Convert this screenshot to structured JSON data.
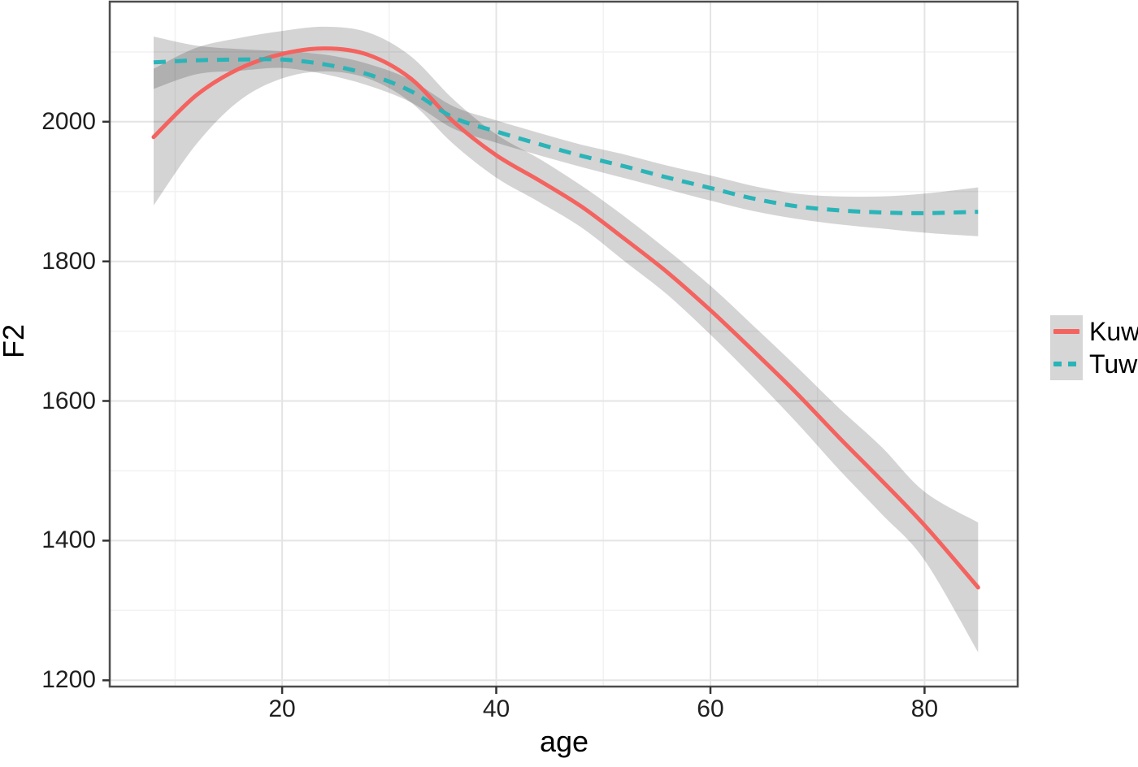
{
  "figure": {
    "background": "#ffffff"
  },
  "chart_data": {
    "type": "line",
    "title": "",
    "xlabel": "age",
    "ylabel": "F2",
    "xlim": [
      3.9,
      88.7
    ],
    "ylim": [
      1191,
      2172
    ],
    "x_ticks": [
      20,
      40,
      60,
      80
    ],
    "x_minor_ticks": [
      10,
      30,
      50,
      70
    ],
    "y_ticks": [
      1200,
      1400,
      1600,
      1800,
      2000
    ],
    "y_minor_ticks": [
      1300,
      1500,
      1700,
      1900,
      2100
    ],
    "grid": true,
    "legend_position": "right",
    "x": [
      8,
      12,
      16,
      20,
      24,
      28,
      32,
      36,
      40,
      44,
      48,
      52,
      56,
      60,
      64,
      68,
      72,
      76,
      80,
      85
    ],
    "series": [
      {
        "name": "Kuw",
        "color": "#f4635f",
        "linestyle": "solid",
        "values": [
          1978,
          2038,
          2076,
          2097,
          2105,
          2096,
          2062,
          2000,
          1952,
          1916,
          1878,
          1832,
          1784,
          1730,
          1672,
          1612,
          1548,
          1486,
          1422,
          1333
        ],
        "ci_lower": [
          1880,
          1968,
          2030,
          2062,
          2072,
          2062,
          2028,
          1968,
          1920,
          1885,
          1848,
          1800,
          1752,
          1695,
          1634,
          1570,
          1502,
          1438,
          1372,
          1240
        ],
        "ci_upper": [
          2076,
          2106,
          2120,
          2130,
          2136,
          2128,
          2094,
          2032,
          1982,
          1947,
          1908,
          1864,
          1816,
          1765,
          1708,
          1650,
          1590,
          1534,
          1470,
          1426
        ]
      },
      {
        "name": "Tuw",
        "color": "#2ab4b8",
        "linestyle": "dashed",
        "values": [
          2085,
          2088,
          2089,
          2089,
          2082,
          2068,
          2044,
          2006,
          1986,
          1968,
          1951,
          1936,
          1920,
          1905,
          1890,
          1879,
          1873,
          1870,
          1869,
          1871
        ],
        "ci_lower": [
          2047,
          2068,
          2073,
          2077,
          2068,
          2052,
          2028,
          1990,
          1970,
          1952,
          1935,
          1919,
          1903,
          1887,
          1872,
          1861,
          1853,
          1847,
          1841,
          1836
        ],
        "ci_upper": [
          2122,
          2109,
          2104,
          2101,
          2096,
          2083,
          2060,
          2022,
          2002,
          1984,
          1967,
          1953,
          1937,
          1923,
          1908,
          1897,
          1893,
          1893,
          1897,
          1906
        ]
      }
    ],
    "style": {
      "ribbon_color": "#000000",
      "ribbon_opacity": 0.17,
      "grid_major": "#e4e4e4",
      "grid_minor": "#f2f2f2",
      "panel_border": "#4d4d4d",
      "tick_color": "#333333",
      "line_width": 5
    }
  },
  "legend": {
    "key_fill": "#d6d6d6",
    "items": [
      {
        "label": "Kuw"
      },
      {
        "label": "Tuw"
      }
    ]
  }
}
